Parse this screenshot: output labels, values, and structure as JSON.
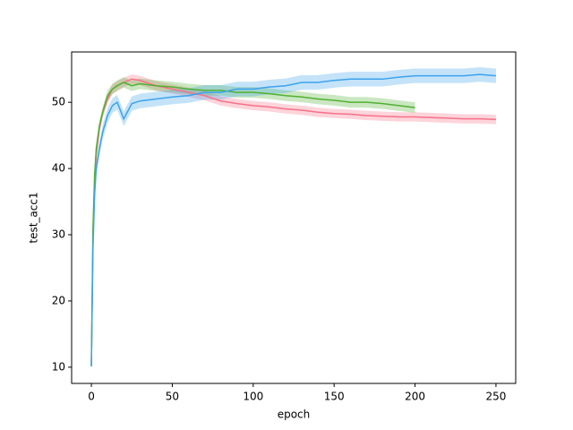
{
  "chart_data": {
    "type": "line",
    "x_label": "epoch",
    "y_label": "test_acc1",
    "x": [
      0,
      1,
      2,
      3,
      5,
      7,
      10,
      13,
      16,
      20,
      25,
      30,
      40,
      50,
      60,
      70,
      80,
      90,
      100,
      110,
      120,
      130,
      140,
      150,
      160,
      170,
      180,
      190,
      200,
      210,
      220,
      230,
      240,
      250
    ],
    "xlim": [
      -12.2,
      262.2
    ],
    "ylim": [
      7.55,
      57.6
    ],
    "xticks": [
      0,
      50,
      100,
      150,
      200,
      250
    ],
    "yticks": [
      10,
      20,
      30,
      40,
      50
    ],
    "series": [
      {
        "color": "#f77189",
        "values": [
          10.2,
          30,
          38,
          42,
          46,
          48.5,
          50.5,
          52,
          52.5,
          53,
          53.5,
          53.3,
          52.5,
          52,
          51.5,
          51,
          50.2,
          49.8,
          49.5,
          49.3,
          49,
          48.8,
          48.5,
          48.3,
          48.2,
          48,
          47.9,
          47.8,
          47.8,
          47.7,
          47.6,
          47.5,
          47.5,
          47.4
        ],
        "lower": [
          9.5,
          29.3,
          37.3,
          41.3,
          45.3,
          47.8,
          49.8,
          51.3,
          51.8,
          52.3,
          52.8,
          52.6,
          51.8,
          51.3,
          50.8,
          50.3,
          49.5,
          49.1,
          48.8,
          48.6,
          48.3,
          48.1,
          47.8,
          47.6,
          47.5,
          47.3,
          47.2,
          47.1,
          47.1,
          47,
          46.9,
          46.8,
          46.8,
          46.7
        ],
        "upper": [
          10.9,
          30.7,
          38.7,
          42.7,
          46.7,
          49.2,
          51.2,
          52.7,
          53.2,
          53.7,
          54.2,
          54,
          53.2,
          52.7,
          52.2,
          51.7,
          50.9,
          50.5,
          50.2,
          50,
          49.7,
          49.5,
          49.2,
          49,
          48.9,
          48.7,
          48.6,
          48.5,
          48.5,
          48.4,
          48.3,
          48.2,
          48.2,
          48.1
        ]
      },
      {
        "color": "#50b131",
        "values": [
          10.2,
          31,
          39,
          43,
          46.5,
          48.5,
          51,
          52,
          52.5,
          53,
          52.5,
          52.8,
          52.5,
          52.3,
          52,
          51.8,
          51.8,
          51.5,
          51.5,
          51.3,
          51,
          50.8,
          50.5,
          50.3,
          50,
          50,
          49.8,
          49.5,
          49.2,
          null,
          null,
          null,
          null,
          null
        ],
        "lower": [
          9.4,
          30.2,
          38.2,
          42.2,
          45.7,
          47.7,
          50.2,
          51.2,
          51.7,
          52.2,
          51.7,
          52,
          51.7,
          51.5,
          51.2,
          51,
          51,
          50.7,
          50.7,
          50.5,
          50.2,
          50,
          49.7,
          49.5,
          49.2,
          49.2,
          49,
          48.7,
          48.4,
          null,
          null,
          null,
          null,
          null
        ],
        "upper": [
          11,
          31.8,
          39.8,
          43.8,
          47.3,
          49.3,
          51.8,
          52.8,
          53.3,
          53.8,
          53.3,
          53.6,
          53.3,
          53.1,
          52.8,
          52.6,
          52.6,
          52.3,
          52.3,
          52.1,
          51.8,
          51.6,
          51.3,
          51.1,
          50.8,
          50.8,
          50.6,
          50.3,
          50,
          null,
          null,
          null,
          null,
          null
        ]
      },
      {
        "color": "#3ba3ec",
        "values": [
          10.1,
          28,
          36,
          40,
          43,
          45.5,
          48,
          49.5,
          50,
          47.5,
          49.8,
          50.2,
          50.5,
          50.8,
          51,
          51.5,
          51.5,
          52,
          52,
          52.3,
          52.5,
          53,
          53,
          53.3,
          53.5,
          53.5,
          53.5,
          53.8,
          54,
          54,
          54,
          54,
          54.2,
          54
        ],
        "lower": [
          9,
          26.9,
          34.9,
          38.9,
          41.9,
          44.4,
          46.9,
          48.4,
          48.9,
          46.4,
          48.7,
          49.1,
          49.4,
          49.7,
          49.9,
          50.4,
          50.4,
          50.9,
          50.9,
          51.2,
          51.4,
          51.9,
          51.9,
          52.2,
          52.4,
          52.4,
          52.4,
          52.7,
          52.9,
          52.9,
          52.9,
          52.9,
          53.1,
          52.9
        ],
        "upper": [
          11.2,
          29.1,
          37.1,
          41.1,
          44.1,
          46.6,
          49.1,
          50.6,
          51.1,
          48.6,
          50.9,
          51.3,
          51.6,
          51.9,
          52.1,
          52.6,
          52.6,
          53.1,
          53.1,
          53.4,
          53.6,
          54.1,
          54.1,
          54.4,
          54.6,
          54.6,
          54.6,
          54.9,
          55.1,
          55.1,
          55.1,
          55.1,
          55.3,
          55.1
        ]
      }
    ]
  }
}
